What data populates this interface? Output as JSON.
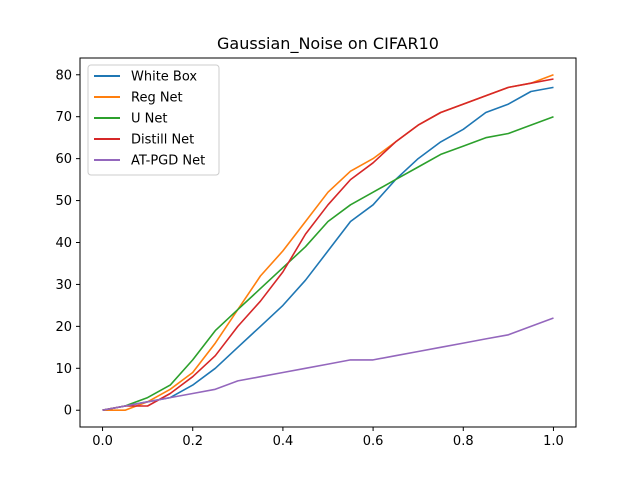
{
  "chart_data": {
    "type": "line",
    "title": "Gaussian_Noise on CIFAR10",
    "xlabel": "",
    "ylabel": "",
    "xlim": [
      -0.05,
      1.05
    ],
    "ylim": [
      -4,
      84
    ],
    "xticks": [
      0.0,
      0.2,
      0.4,
      0.6,
      0.8,
      1.0
    ],
    "xtick_labels": [
      "0.0",
      "0.2",
      "0.4",
      "0.6",
      "0.8",
      "1.0"
    ],
    "yticks": [
      0,
      10,
      20,
      30,
      40,
      50,
      60,
      70,
      80
    ],
    "ytick_labels": [
      "0",
      "10",
      "20",
      "30",
      "40",
      "50",
      "60",
      "70",
      "80"
    ],
    "grid": false,
    "legend_position": "top-left",
    "series": [
      {
        "name": "White Box",
        "color": "#1f77b4",
        "x": [
          0.0,
          0.05,
          0.1,
          0.15,
          0.2,
          0.25,
          0.3,
          0.35,
          0.4,
          0.45,
          0.5,
          0.55,
          0.6,
          0.65,
          0.7,
          0.75,
          0.8,
          0.85,
          0.9,
          0.95,
          1.0
        ],
        "y": [
          0,
          1,
          2,
          3,
          6,
          10,
          15,
          20,
          25,
          31,
          38,
          45,
          49,
          55,
          60,
          64,
          67,
          71,
          73,
          76,
          77
        ]
      },
      {
        "name": "Reg Net",
        "color": "#ff7f0e",
        "x": [
          0.0,
          0.05,
          0.1,
          0.15,
          0.2,
          0.25,
          0.3,
          0.35,
          0.4,
          0.45,
          0.5,
          0.55,
          0.6,
          0.65,
          0.7,
          0.75,
          0.8,
          0.85,
          0.9,
          0.95,
          1.0
        ],
        "y": [
          0,
          0,
          2,
          5,
          9,
          16,
          24,
          32,
          38,
          45,
          52,
          57,
          60,
          64,
          68,
          71,
          73,
          75,
          77,
          78,
          80
        ]
      },
      {
        "name": "U Net",
        "color": "#2ca02c",
        "x": [
          0.0,
          0.05,
          0.1,
          0.15,
          0.2,
          0.25,
          0.3,
          0.35,
          0.4,
          0.45,
          0.5,
          0.55,
          0.6,
          0.65,
          0.7,
          0.75,
          0.8,
          0.85,
          0.9,
          0.95,
          1.0
        ],
        "y": [
          0,
          1,
          3,
          6,
          12,
          19,
          24,
          29,
          34,
          39,
          45,
          49,
          52,
          55,
          58,
          61,
          63,
          65,
          66,
          68,
          70
        ]
      },
      {
        "name": "Distill Net",
        "color": "#d62728",
        "x": [
          0.0,
          0.05,
          0.1,
          0.15,
          0.2,
          0.25,
          0.3,
          0.35,
          0.4,
          0.45,
          0.5,
          0.55,
          0.6,
          0.65,
          0.7,
          0.75,
          0.8,
          0.85,
          0.9,
          0.95,
          1.0
        ],
        "y": [
          0,
          1,
          1,
          4,
          8,
          13,
          20,
          26,
          33,
          42,
          49,
          55,
          59,
          64,
          68,
          71,
          73,
          75,
          77,
          78,
          79
        ]
      },
      {
        "name": "AT-PGD Net",
        "color": "#9467bd",
        "x": [
          0.0,
          0.05,
          0.1,
          0.15,
          0.2,
          0.25,
          0.3,
          0.35,
          0.4,
          0.45,
          0.5,
          0.55,
          0.6,
          0.65,
          0.7,
          0.75,
          0.8,
          0.85,
          0.9,
          0.95,
          1.0
        ],
        "y": [
          0,
          1,
          2,
          3,
          4,
          5,
          7,
          8,
          9,
          10,
          11,
          12,
          12,
          13,
          14,
          15,
          16,
          17,
          18,
          20,
          22
        ]
      }
    ]
  }
}
